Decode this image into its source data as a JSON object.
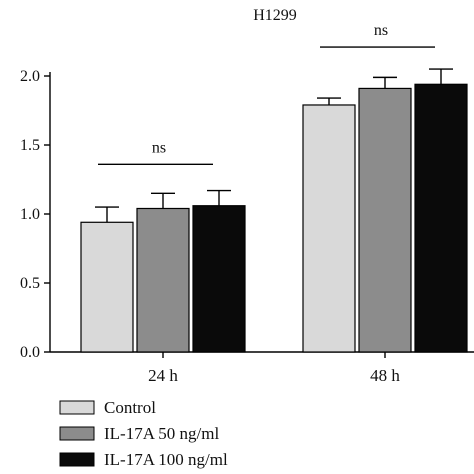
{
  "chart_data": {
    "type": "bar",
    "title": "H1299",
    "categories": [
      "24 h",
      "48 h"
    ],
    "series": [
      {
        "name": "Control",
        "color": "#d9d9d9",
        "values": [
          0.94,
          1.79
        ],
        "errors": [
          0.11,
          0.05
        ]
      },
      {
        "name": "IL-17A 50 ng/ml",
        "color": "#8c8c8c",
        "values": [
          1.04,
          1.91
        ],
        "errors": [
          0.11,
          0.08
        ]
      },
      {
        "name": "IL-17A 100 ng/ml",
        "color": "#0a0a0a",
        "values": [
          1.06,
          1.94
        ],
        "errors": [
          0.11,
          0.11
        ]
      }
    ],
    "ylim": [
      0,
      2.0
    ],
    "yticks": [
      "0.0",
      "0.5",
      "1.0",
      "1.5",
      "2.0"
    ],
    "xlabel": "",
    "ylabel": "",
    "annotations": [
      {
        "text": "ns",
        "category": "24 h",
        "level": 1.36
      },
      {
        "text": "ns",
        "category": "48 h",
        "level": 2.21
      }
    ],
    "legend_position": "bottom-left",
    "grid": false
  }
}
